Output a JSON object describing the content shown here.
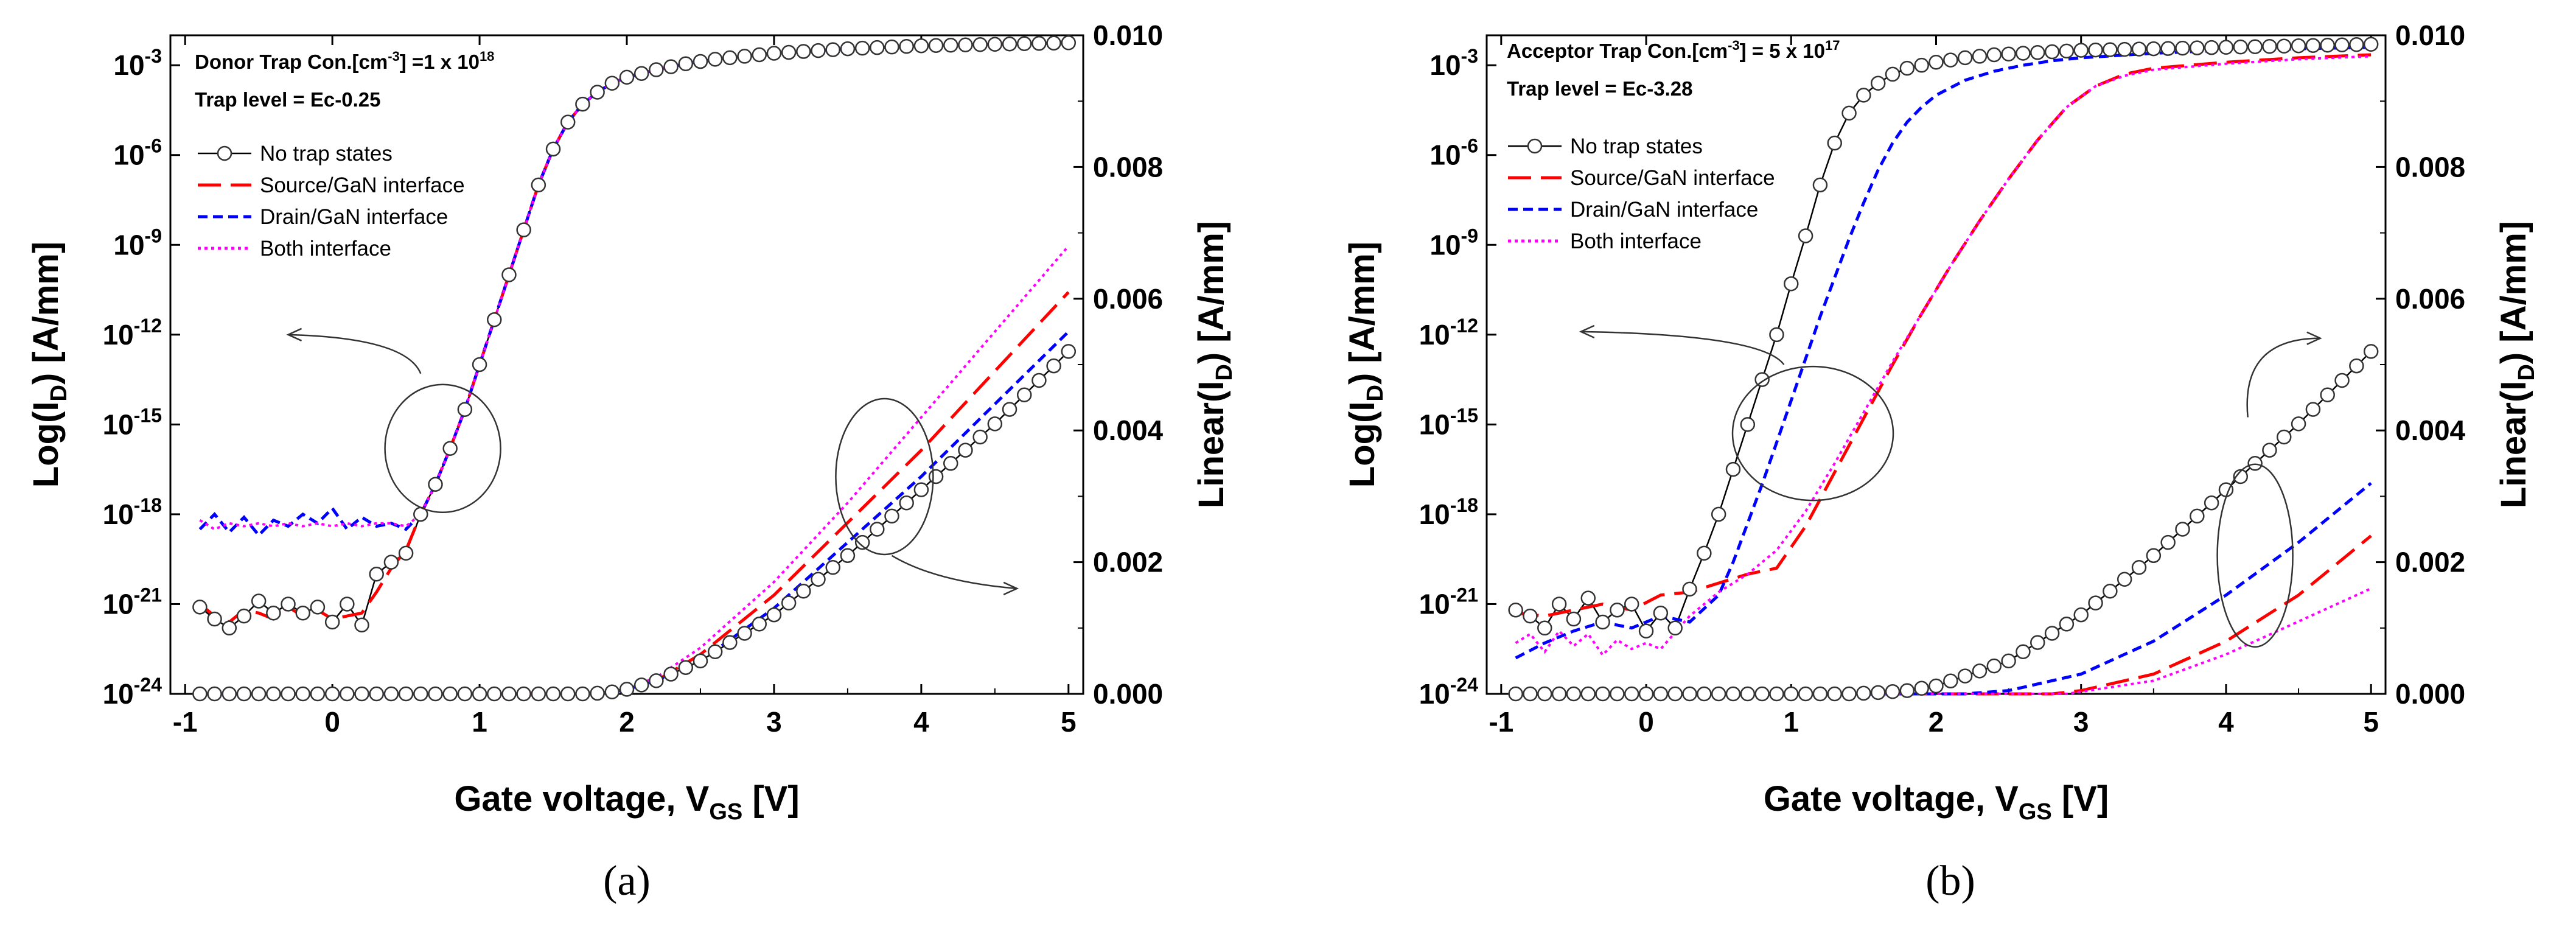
{
  "chart_data": [
    {
      "type": "line",
      "panel_label": "(a)",
      "annotation": {
        "line1_prefix": "Donor Trap Con.[cm",
        "line1_sup1": "-3",
        "line1_mid": "] =1 x 10",
        "line1_sup2": "18",
        "line2": "Trap level = Ec-0.25"
      },
      "xlabel": {
        "main": "Gate voltage, V",
        "sub": "GS",
        "unit": " [V]"
      },
      "ylabel_left": {
        "main": "Log(I",
        "sub": "D",
        "unit": ") [A/mm]"
      },
      "ylabel_right": {
        "main": "Linear(I",
        "sub": "D",
        "unit": ") [A/mm]"
      },
      "xlim": [
        -1.1,
        5.1
      ],
      "x_ticks": [
        -1,
        0,
        1,
        2,
        3,
        4,
        5
      ],
      "y_left_log_range": [
        -24,
        -2
      ],
      "y_left_ticks": [
        {
          "exp": -3,
          "label": "-3"
        },
        {
          "exp": -6,
          "label": "-6"
        },
        {
          "exp": -9,
          "label": "-9"
        },
        {
          "exp": -12,
          "label": "-12"
        },
        {
          "exp": -15,
          "label": "-15"
        },
        {
          "exp": -18,
          "label": "-18"
        },
        {
          "exp": -21,
          "label": "-21"
        },
        {
          "exp": -24,
          "label": "-24"
        }
      ],
      "y_right_range": [
        0,
        0.01
      ],
      "y_right_ticks": [
        0.0,
        0.002,
        0.004,
        0.006,
        0.008,
        0.01
      ],
      "y_right_tick_labels": [
        "0.000",
        "0.002",
        "0.004",
        "0.006",
        "0.008",
        "0.010"
      ],
      "legend": [
        "No trap states",
        "Source/GaN interface",
        "Drain/GaN interface",
        "Both interface"
      ],
      "colors": [
        "#000000",
        "#ff0000",
        "#0000ff",
        "#ff00ff"
      ],
      "series_log": [
        {
          "name": "No trap states",
          "x": [
            -0.9,
            -0.8,
            -0.7,
            -0.6,
            -0.5,
            -0.4,
            -0.3,
            -0.2,
            -0.1,
            0.0,
            0.1,
            0.2,
            0.3,
            0.4,
            0.5,
            0.6,
            0.7,
            0.8,
            0.9,
            1.0,
            1.1,
            1.2,
            1.3,
            1.4,
            1.5,
            1.6,
            1.7,
            1.8,
            1.9,
            2.0,
            2.2,
            2.4,
            2.6,
            2.8,
            3.0,
            3.5,
            4.0,
            4.5,
            5.0
          ],
          "y": [
            -21.1,
            -21.5,
            -21.8,
            -21.4,
            -20.9,
            -21.3,
            -21.0,
            -21.3,
            -21.1,
            -21.6,
            -21.0,
            -21.7,
            -20.0,
            -19.6,
            -19.3,
            -18.0,
            -17.0,
            -15.8,
            -14.5,
            -13.0,
            -11.5,
            -10.0,
            -8.5,
            -7.0,
            -5.8,
            -4.9,
            -4.3,
            -3.9,
            -3.6,
            -3.4,
            -3.15,
            -2.95,
            -2.8,
            -2.7,
            -2.6,
            -2.45,
            -2.35,
            -2.3,
            -2.25
          ]
        },
        {
          "name": "Source/GaN interface",
          "x": [
            -0.9,
            -0.8,
            -0.7,
            -0.6,
            -0.5,
            -0.4,
            -0.3,
            -0.2,
            -0.1,
            0.0,
            0.1,
            0.2,
            0.3,
            0.4,
            0.5,
            0.6,
            0.7,
            0.8,
            0.9,
            1.0,
            1.1,
            1.2,
            1.3,
            1.4,
            1.5,
            1.6,
            1.7,
            1.8,
            1.9,
            2.0,
            2.2,
            2.4,
            2.6,
            2.8,
            3.0,
            3.5,
            4.0,
            4.5,
            5.0
          ],
          "y": [
            -21.0,
            -21.4,
            -21.6,
            -21.2,
            -21.3,
            -21.5,
            -21.1,
            -21.4,
            -21.2,
            -21.5,
            -21.4,
            -21.3,
            -20.6,
            -19.8,
            -19.2,
            -18.0,
            -17.0,
            -15.8,
            -14.5,
            -13.0,
            -11.5,
            -10.0,
            -8.5,
            -7.0,
            -5.8,
            -4.9,
            -4.3,
            -3.9,
            -3.6,
            -3.4,
            -3.15,
            -2.95,
            -2.8,
            -2.7,
            -2.6,
            -2.45,
            -2.35,
            -2.3,
            -2.25
          ]
        },
        {
          "name": "Drain/GaN interface",
          "x": [
            -0.9,
            -0.8,
            -0.7,
            -0.6,
            -0.5,
            -0.4,
            -0.3,
            -0.2,
            -0.1,
            0.0,
            0.1,
            0.2,
            0.3,
            0.4,
            0.5,
            0.6,
            0.7,
            0.8,
            0.9,
            1.0,
            1.1,
            1.2,
            1.3,
            1.4,
            1.5,
            1.6,
            1.7,
            1.8,
            1.9,
            2.0,
            2.2,
            2.4,
            2.6,
            2.8,
            3.0,
            3.5,
            4.0,
            4.5,
            5.0
          ],
          "y": [
            -18.5,
            -18.0,
            -18.6,
            -18.1,
            -18.7,
            -18.2,
            -18.4,
            -18.0,
            -18.3,
            -17.8,
            -18.5,
            -18.1,
            -18.4,
            -18.3,
            -18.5,
            -18.0,
            -17.0,
            -15.8,
            -14.5,
            -13.0,
            -11.5,
            -10.0,
            -8.5,
            -7.0,
            -5.8,
            -4.9,
            -4.3,
            -3.9,
            -3.6,
            -3.4,
            -3.15,
            -2.95,
            -2.8,
            -2.7,
            -2.6,
            -2.45,
            -2.35,
            -2.3,
            -2.25
          ]
        },
        {
          "name": "Both interface",
          "x": [
            -0.9,
            -0.8,
            -0.7,
            -0.6,
            -0.5,
            -0.4,
            -0.3,
            -0.2,
            -0.1,
            0.0,
            0.1,
            0.2,
            0.3,
            0.4,
            0.5,
            0.6,
            0.7,
            0.8,
            0.9,
            1.0,
            1.1,
            1.2,
            1.3,
            1.4,
            1.5,
            1.6,
            1.7,
            1.8,
            1.9,
            2.0,
            2.2,
            2.4,
            2.6,
            2.8,
            3.0,
            3.5,
            4.0,
            4.5,
            5.0
          ],
          "y": [
            -18.2,
            -18.5,
            -18.3,
            -18.4,
            -18.3,
            -18.4,
            -18.3,
            -18.4,
            -18.3,
            -18.4,
            -18.3,
            -18.4,
            -18.3,
            -18.3,
            -18.4,
            -18.0,
            -17.0,
            -15.8,
            -14.5,
            -13.0,
            -11.5,
            -10.0,
            -8.5,
            -7.0,
            -5.8,
            -4.9,
            -4.3,
            -3.9,
            -3.6,
            -3.4,
            -3.15,
            -2.95,
            -2.8,
            -2.7,
            -2.6,
            -2.45,
            -2.35,
            -2.3,
            -2.25
          ]
        }
      ],
      "series_linear": [
        {
          "name": "No trap states",
          "x": [
            -0.9,
            1.7,
            1.8,
            1.9,
            2.0,
            2.2,
            2.5,
            3.0,
            3.5,
            4.0,
            4.5,
            5.0
          ],
          "y": [
            0.0,
            0.0,
            1e-05,
            3e-05,
            7e-05,
            0.0002,
            0.0005,
            0.0012,
            0.0021,
            0.0031,
            0.0041,
            0.0052
          ]
        },
        {
          "name": "Source/GaN interface",
          "x": [
            -0.9,
            1.7,
            1.8,
            1.9,
            2.0,
            2.2,
            2.5,
            3.0,
            3.5,
            4.0,
            4.5,
            5.0
          ],
          "y": [
            0.0,
            0.0,
            1e-05,
            3e-05,
            7e-05,
            0.0002,
            0.0006,
            0.0015,
            0.0026,
            0.0037,
            0.0049,
            0.0061
          ]
        },
        {
          "name": "Drain/GaN interface",
          "x": [
            -0.9,
            1.7,
            1.8,
            1.9,
            2.0,
            2.2,
            2.5,
            3.0,
            3.5,
            4.0,
            4.5,
            5.0
          ],
          "y": [
            0.0,
            0.0,
            1e-05,
            3e-05,
            7e-05,
            0.0002,
            0.0005,
            0.0013,
            0.0023,
            0.0033,
            0.0044,
            0.0055
          ]
        },
        {
          "name": "Both interface",
          "x": [
            -0.9,
            1.7,
            1.8,
            1.9,
            2.0,
            2.2,
            2.5,
            3.0,
            3.5,
            4.0,
            4.5,
            5.0
          ],
          "y": [
            0.0,
            0.0,
            1e-05,
            4e-05,
            8e-05,
            0.00025,
            0.0007,
            0.0017,
            0.0029,
            0.0042,
            0.0055,
            0.0068
          ]
        }
      ]
    },
    {
      "type": "line",
      "panel_label": "(b)",
      "annotation": {
        "line1_prefix": "Acceptor Trap Con.[cm",
        "line1_sup1": "-3",
        "line1_mid": "] = 5 x 10",
        "line1_sup2": "17",
        "line2": "Trap level = Ec-3.28"
      },
      "xlabel": {
        "main": "Gate voltage, V",
        "sub": "GS",
        "unit": " [V]"
      },
      "ylabel_left": {
        "main": "Log(I",
        "sub": "D",
        "unit": ") [A/mm]"
      },
      "ylabel_right": {
        "main": "Linear(I",
        "sub": "D",
        "unit": ") [A/mm]"
      },
      "xlim": [
        -1.1,
        5.1
      ],
      "x_ticks": [
        -1,
        0,
        1,
        2,
        3,
        4,
        5
      ],
      "y_left_log_range": [
        -24,
        -2
      ],
      "y_left_ticks": [
        {
          "exp": -3,
          "label": "-3"
        },
        {
          "exp": -6,
          "label": "-6"
        },
        {
          "exp": -9,
          "label": "-9"
        },
        {
          "exp": -12,
          "label": "-12"
        },
        {
          "exp": -15,
          "label": "-15"
        },
        {
          "exp": -18,
          "label": "-18"
        },
        {
          "exp": -21,
          "label": "-21"
        },
        {
          "exp": -24,
          "label": "-24"
        }
      ],
      "y_right_range": [
        0,
        0.01
      ],
      "y_right_ticks": [
        0.0,
        0.002,
        0.004,
        0.006,
        0.008,
        0.01
      ],
      "y_right_tick_labels": [
        "0.000",
        "0.002",
        "0.004",
        "0.006",
        "0.008",
        "0.010"
      ],
      "legend": [
        "No trap states",
        "Source/GaN interface",
        "Drain/GaN interface",
        "Both interface"
      ],
      "colors": [
        "#000000",
        "#ff0000",
        "#0000ff",
        "#ff00ff"
      ],
      "series_log": [
        {
          "name": "No trap states",
          "x": [
            -0.9,
            -0.8,
            -0.7,
            -0.6,
            -0.5,
            -0.4,
            -0.3,
            -0.2,
            -0.1,
            0.0,
            0.1,
            0.2,
            0.3,
            0.4,
            0.5,
            0.6,
            0.7,
            0.8,
            0.9,
            1.0,
            1.1,
            1.2,
            1.3,
            1.4,
            1.5,
            1.6,
            1.7,
            1.8,
            1.9,
            2.0,
            2.2,
            2.4,
            2.6,
            2.8,
            3.0,
            3.5,
            4.0,
            4.5,
            5.0
          ],
          "y": [
            -21.2,
            -21.4,
            -21.8,
            -21.0,
            -21.5,
            -20.8,
            -21.6,
            -21.2,
            -21.0,
            -21.9,
            -21.3,
            -21.8,
            -20.5,
            -19.3,
            -18.0,
            -16.5,
            -15.0,
            -13.5,
            -12.0,
            -10.3,
            -8.7,
            -7.0,
            -5.6,
            -4.6,
            -4.0,
            -3.6,
            -3.3,
            -3.1,
            -3.0,
            -2.9,
            -2.75,
            -2.65,
            -2.6,
            -2.55,
            -2.5,
            -2.45,
            -2.4,
            -2.35,
            -2.3
          ]
        },
        {
          "name": "Source/GaN interface",
          "x": [
            -0.9,
            -0.7,
            -0.5,
            -0.3,
            -0.1,
            0.1,
            0.3,
            0.5,
            0.7,
            0.9,
            1.1,
            1.3,
            1.5,
            1.7,
            1.9,
            2.1,
            2.3,
            2.5,
            2.7,
            2.9,
            3.1,
            3.3,
            3.5,
            4.0,
            4.5,
            5.0
          ],
          "y": [
            -21.3,
            -21.4,
            -21.2,
            -21.0,
            -21.2,
            -20.7,
            -20.6,
            -20.3,
            -20.0,
            -19.8,
            -18.4,
            -16.6,
            -14.8,
            -13.0,
            -11.3,
            -9.7,
            -8.2,
            -6.8,
            -5.5,
            -4.4,
            -3.7,
            -3.3,
            -3.1,
            -2.9,
            -2.75,
            -2.65
          ]
        },
        {
          "name": "Drain/GaN interface",
          "x": [
            -0.9,
            -0.7,
            -0.5,
            -0.3,
            -0.1,
            0.1,
            0.3,
            0.5,
            0.6,
            0.7,
            0.8,
            0.9,
            1.0,
            1.1,
            1.2,
            1.3,
            1.4,
            1.5,
            1.6,
            1.7,
            1.8,
            1.9,
            2.0,
            2.2,
            2.4,
            2.6,
            2.8,
            3.0,
            3.5,
            4.0,
            4.5,
            5.0
          ],
          "y": [
            -22.8,
            -22.3,
            -21.9,
            -21.6,
            -21.8,
            -21.4,
            -21.6,
            -20.7,
            -19.6,
            -18.3,
            -17.0,
            -15.6,
            -14.2,
            -12.8,
            -11.4,
            -10.1,
            -8.8,
            -7.6,
            -6.5,
            -5.6,
            -4.9,
            -4.4,
            -4.0,
            -3.5,
            -3.2,
            -3.0,
            -2.85,
            -2.75,
            -2.6,
            -2.5,
            -2.45,
            -2.4
          ]
        },
        {
          "name": "Both interface",
          "x": [
            -0.9,
            -0.8,
            -0.7,
            -0.6,
            -0.5,
            -0.4,
            -0.3,
            -0.2,
            -0.1,
            0.0,
            0.1,
            0.3,
            0.5,
            0.7,
            0.9,
            1.1,
            1.3,
            1.5,
            1.7,
            1.9,
            2.1,
            2.3,
            2.5,
            2.7,
            2.9,
            3.1,
            3.3,
            3.5,
            4.0,
            4.5,
            5.0
          ],
          "y": [
            -22.3,
            -22.0,
            -22.6,
            -21.9,
            -22.4,
            -22.0,
            -22.7,
            -22.2,
            -22.5,
            -22.3,
            -22.5,
            -21.4,
            -20.6,
            -20.0,
            -19.2,
            -17.9,
            -16.3,
            -14.6,
            -12.9,
            -11.3,
            -9.7,
            -8.2,
            -6.8,
            -5.5,
            -4.4,
            -3.7,
            -3.35,
            -3.15,
            -2.95,
            -2.8,
            -2.7
          ]
        }
      ],
      "series_linear": [
        {
          "name": "No trap states",
          "x": [
            -0.9,
            1.4,
            1.6,
            1.8,
            2.0,
            2.5,
            3.0,
            3.5,
            4.0,
            4.5,
            5.0
          ],
          "y": [
            0.0,
            0.0,
            2e-05,
            5e-05,
            0.00012,
            0.0005,
            0.0012,
            0.0021,
            0.0031,
            0.0041,
            0.0052
          ]
        },
        {
          "name": "Source/GaN interface",
          "x": [
            -0.9,
            2.8,
            3.0,
            3.5,
            4.0,
            4.5,
            5.0
          ],
          "y": [
            0.0,
            0.0,
            5e-05,
            0.0003,
            0.0008,
            0.0015,
            0.0024
          ]
        },
        {
          "name": "Drain/GaN interface",
          "x": [
            -0.9,
            2.2,
            2.5,
            3.0,
            3.5,
            4.0,
            4.5,
            5.0
          ],
          "y": [
            0.0,
            0.0,
            5e-05,
            0.0003,
            0.0008,
            0.0015,
            0.0023,
            0.0032
          ]
        },
        {
          "name": "Both interface",
          "x": [
            -0.9,
            2.9,
            3.2,
            3.5,
            4.0,
            4.5,
            5.0
          ],
          "y": [
            0.0,
            0.0,
            0.0001,
            0.0002,
            0.0006,
            0.0011,
            0.0016
          ]
        }
      ]
    }
  ]
}
